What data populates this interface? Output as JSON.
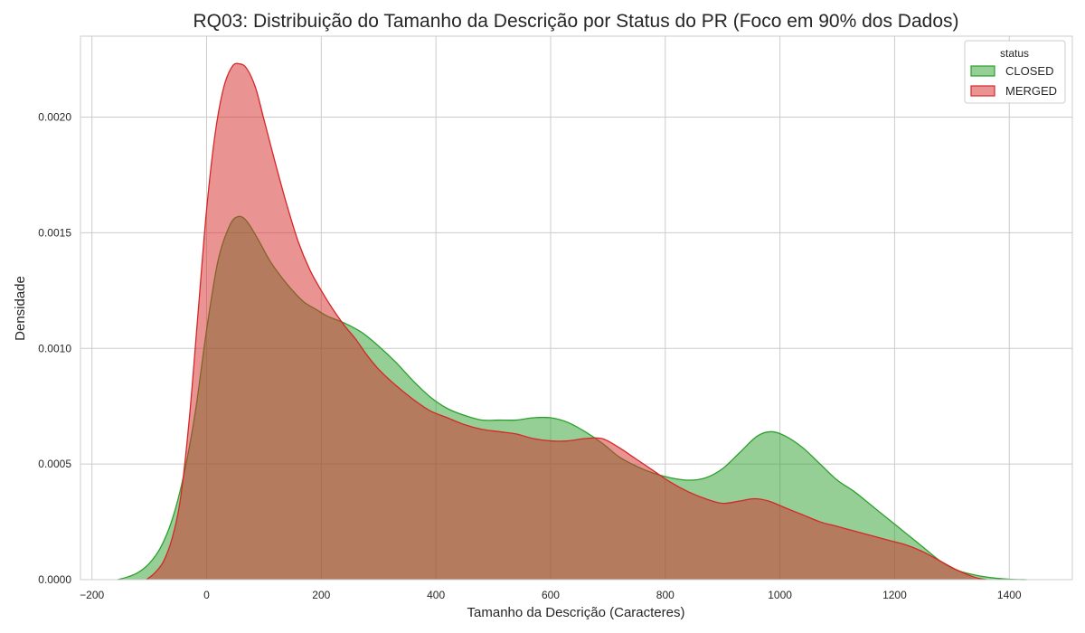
{
  "chart_data": {
    "type": "area",
    "title": "RQ03: Distribuição do Tamanho da Descrição por Status do PR (Foco em 90% dos Dados)",
    "xlabel": "Tamanho da Descrição (Caracteres)",
    "ylabel": "Densidade",
    "xlim": [
      -220,
      1510
    ],
    "ylim": [
      0,
      0.00235
    ],
    "x_ticks": [
      -200,
      0,
      200,
      400,
      600,
      800,
      1000,
      1200,
      1400
    ],
    "x_tick_labels": [
      "−200",
      "0",
      "200",
      "400",
      "600",
      "800",
      "1000",
      "1200",
      "1400"
    ],
    "y_ticks": [
      0,
      0.0005,
      0.001,
      0.0015,
      0.002
    ],
    "y_tick_labels": [
      "0.0000",
      "0.0005",
      "0.0010",
      "0.0015",
      "0.0020"
    ],
    "grid": true,
    "legend": {
      "title": "status",
      "placement": "top-right"
    },
    "series": [
      {
        "name": "CLOSED",
        "color": "#2ca02c",
        "points": [
          [
            -155,
            0.0
          ],
          [
            -140,
            1e-05
          ],
          [
            -120,
            3e-05
          ],
          [
            -100,
            7e-05
          ],
          [
            -80,
            0.00014
          ],
          [
            -60,
            0.00026
          ],
          [
            -40,
            0.00045
          ],
          [
            -20,
            0.00072
          ],
          [
            0,
            0.00108
          ],
          [
            20,
            0.00138
          ],
          [
            40,
            0.00153
          ],
          [
            55,
            0.00157
          ],
          [
            70,
            0.00155
          ],
          [
            90,
            0.00147
          ],
          [
            110,
            0.00138
          ],
          [
            130,
            0.00131
          ],
          [
            150,
            0.00125
          ],
          [
            170,
            0.0012
          ],
          [
            190,
            0.00117
          ],
          [
            210,
            0.00114
          ],
          [
            240,
            0.00111
          ],
          [
            270,
            0.00107
          ],
          [
            300,
            0.00101
          ],
          [
            330,
            0.00094
          ],
          [
            360,
            0.00086
          ],
          [
            390,
            0.00079
          ],
          [
            420,
            0.00074
          ],
          [
            450,
            0.00071
          ],
          [
            480,
            0.00069
          ],
          [
            510,
            0.00069
          ],
          [
            540,
            0.00069
          ],
          [
            570,
            0.0007
          ],
          [
            600,
            0.0007
          ],
          [
            630,
            0.00068
          ],
          [
            660,
            0.00064
          ],
          [
            690,
            0.00059
          ],
          [
            720,
            0.00053
          ],
          [
            750,
            0.00049
          ],
          [
            780,
            0.00046
          ],
          [
            810,
            0.00044
          ],
          [
            840,
            0.00043
          ],
          [
            870,
            0.00044
          ],
          [
            900,
            0.00048
          ],
          [
            930,
            0.00055
          ],
          [
            960,
            0.00062
          ],
          [
            985,
            0.00064
          ],
          [
            1010,
            0.00062
          ],
          [
            1040,
            0.00057
          ],
          [
            1070,
            0.0005
          ],
          [
            1100,
            0.00043
          ],
          [
            1130,
            0.00038
          ],
          [
            1160,
            0.00032
          ],
          [
            1190,
            0.00026
          ],
          [
            1220,
            0.0002
          ],
          [
            1250,
            0.00014
          ],
          [
            1280,
            8e-05
          ],
          [
            1310,
            4e-05
          ],
          [
            1340,
            2e-05
          ],
          [
            1370,
            8e-06
          ],
          [
            1400,
            2e-06
          ],
          [
            1430,
            0.0
          ]
        ]
      },
      {
        "name": "MERGED",
        "color": "#d62728",
        "points": [
          [
            -105,
            0.0
          ],
          [
            -90,
            3e-05
          ],
          [
            -75,
            8e-05
          ],
          [
            -60,
            0.00018
          ],
          [
            -45,
            0.00036
          ],
          [
            -30,
            0.0007
          ],
          [
            -15,
            0.00115
          ],
          [
            0,
            0.0016
          ],
          [
            15,
            0.00193
          ],
          [
            30,
            0.00213
          ],
          [
            45,
            0.00222
          ],
          [
            58,
            0.00223
          ],
          [
            70,
            0.00221
          ],
          [
            85,
            0.00213
          ],
          [
            100,
            0.00199
          ],
          [
            120,
            0.0018
          ],
          [
            140,
            0.00162
          ],
          [
            160,
            0.00146
          ],
          [
            180,
            0.00134
          ],
          [
            200,
            0.00125
          ],
          [
            220,
            0.00117
          ],
          [
            240,
            0.0011
          ],
          [
            260,
            0.00104
          ],
          [
            280,
            0.00097
          ],
          [
            300,
            0.00091
          ],
          [
            330,
            0.00084
          ],
          [
            360,
            0.00078
          ],
          [
            390,
            0.00073
          ],
          [
            420,
            0.0007
          ],
          [
            450,
            0.00067
          ],
          [
            480,
            0.00065
          ],
          [
            510,
            0.00064
          ],
          [
            540,
            0.00063
          ],
          [
            570,
            0.00061
          ],
          [
            600,
            0.0006
          ],
          [
            630,
            0.0006
          ],
          [
            660,
            0.00061
          ],
          [
            690,
            0.00061
          ],
          [
            720,
            0.00057
          ],
          [
            750,
            0.00052
          ],
          [
            780,
            0.00047
          ],
          [
            810,
            0.00042
          ],
          [
            840,
            0.00038
          ],
          [
            870,
            0.00035
          ],
          [
            900,
            0.00033
          ],
          [
            930,
            0.00034
          ],
          [
            955,
            0.00035
          ],
          [
            980,
            0.00034
          ],
          [
            1010,
            0.00031
          ],
          [
            1040,
            0.00028
          ],
          [
            1070,
            0.00025
          ],
          [
            1100,
            0.00023
          ],
          [
            1130,
            0.00021
          ],
          [
            1160,
            0.00019
          ],
          [
            1190,
            0.00017
          ],
          [
            1220,
            0.00015
          ],
          [
            1250,
            0.00012
          ],
          [
            1280,
            8e-05
          ],
          [
            1310,
            4e-05
          ],
          [
            1340,
            1e-05
          ],
          [
            1360,
            0.0
          ]
        ]
      }
    ]
  }
}
